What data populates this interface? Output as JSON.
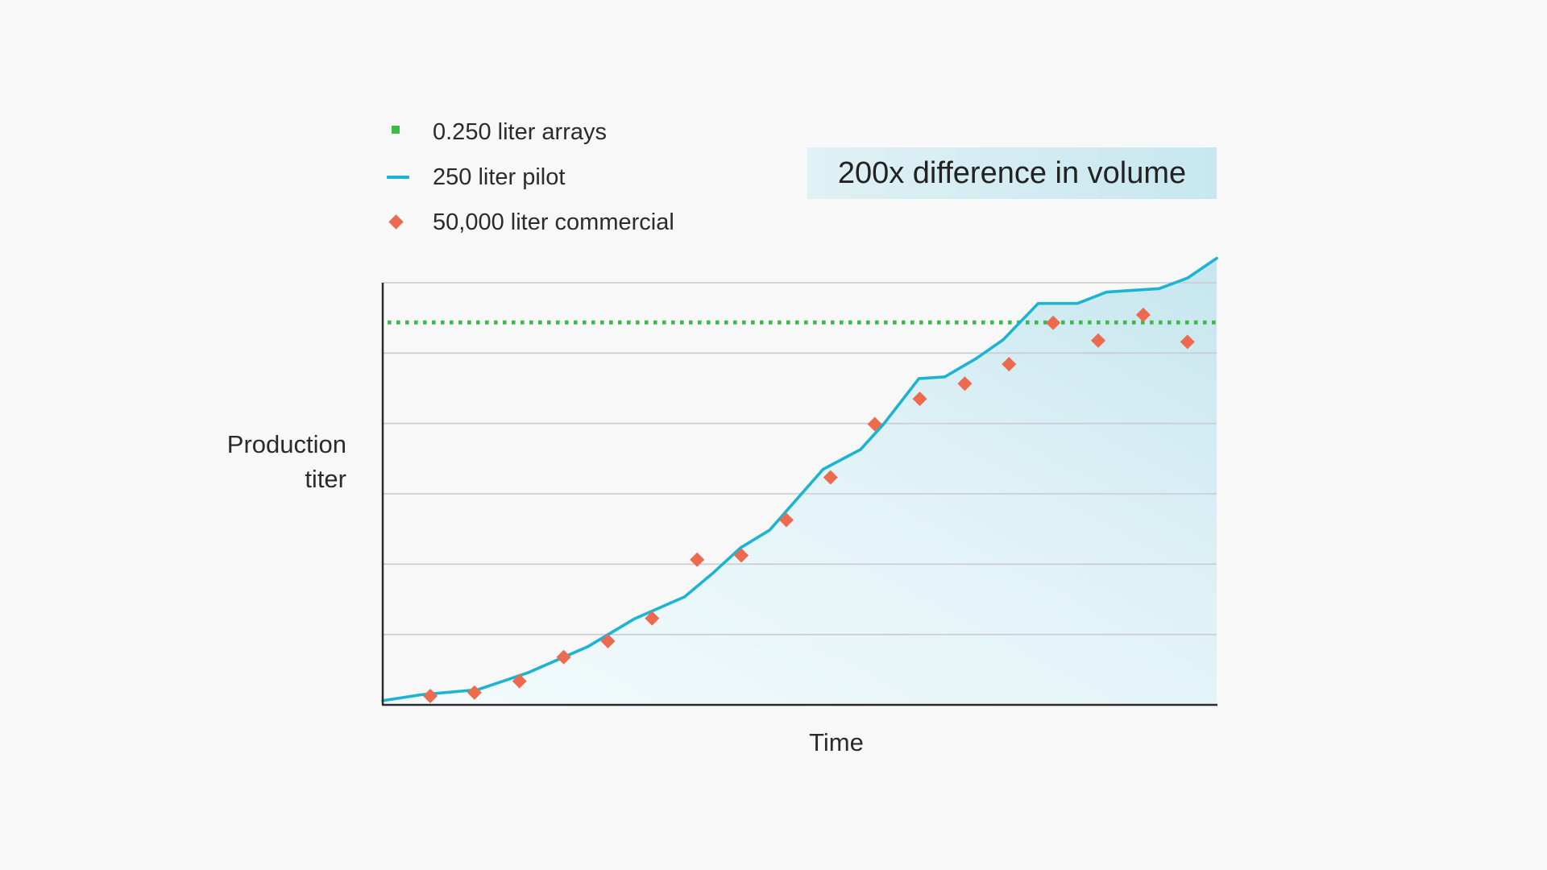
{
  "chart_data": {
    "type": "line",
    "xlabel": "Time",
    "ylabel_lines": [
      "Production",
      "titer"
    ],
    "annotation": "200x difference in volume",
    "grid": true,
    "show_tick_labels": false,
    "xlim": [
      0,
      100
    ],
    "ylim": [
      0,
      100
    ],
    "series": [
      {
        "name": "0.250 liter arrays",
        "kind": "hline",
        "style": "dotted",
        "marker": "square",
        "color": "#3dbb4a",
        "y": 90.6
      },
      {
        "name": "250 liter pilot",
        "kind": "line",
        "color": "#1cb4d0",
        "x": [
          0,
          4.6,
          11.4,
          17.4,
          24.6,
          30.2,
          36.2,
          39.7,
          42.9,
          46.4,
          52.8,
          57.3,
          60.1,
          64.3,
          67.4,
          71.2,
          74.4,
          78.6,
          83.3,
          86.8,
          89.9,
          93.1,
          96.5,
          100
        ],
        "y": [
          1,
          2.4,
          3.6,
          7.6,
          13.8,
          20.4,
          25.6,
          31.4,
          37.2,
          41.4,
          55.8,
          60.5,
          66.6,
          77.3,
          77.7,
          82.1,
          86.5,
          95.1,
          95.1,
          97.8,
          98.2,
          98.6,
          101.1,
          105.8
        ]
      },
      {
        "name": "50,000 liter commercial",
        "kind": "scatter",
        "marker": "diamond",
        "color": "#ed6a4e",
        "x": [
          5.7,
          11.0,
          16.4,
          21.7,
          27.0,
          32.3,
          37.7,
          43.0,
          48.4,
          53.7,
          59.0,
          64.4,
          69.8,
          75.1,
          80.4,
          85.8,
          91.2,
          96.5
        ],
        "y": [
          2.1,
          2.9,
          5.6,
          11.3,
          15.1,
          20.5,
          34.4,
          35.4,
          43.8,
          53.9,
          66.5,
          72.5,
          76.1,
          80.7,
          90.5,
          86.3,
          92.4,
          86.0
        ]
      }
    ]
  }
}
